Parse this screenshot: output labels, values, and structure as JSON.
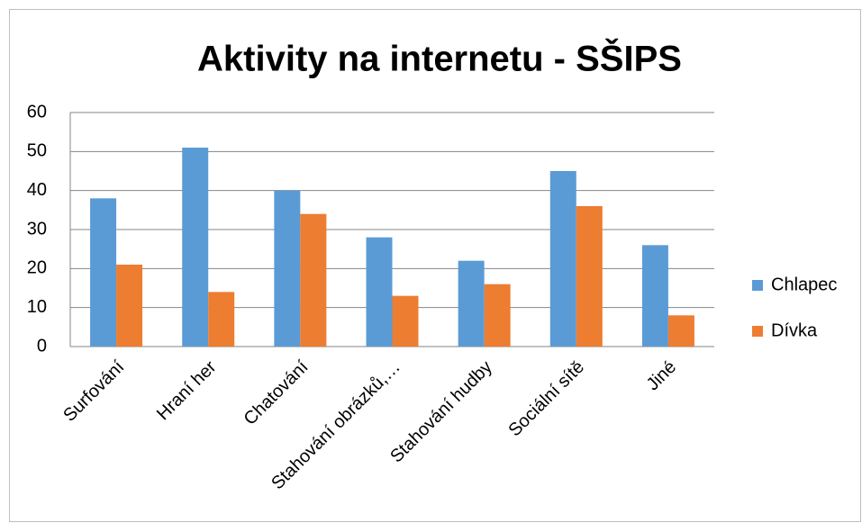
{
  "chart_data": {
    "type": "bar",
    "title": "Aktivity na internetu - SŠIPS",
    "categories": [
      "Surfování",
      "Hraní her",
      "Chatování",
      "Stahování obrázků,…",
      "Stahování hudby",
      "Sociální sítě",
      "Jiné"
    ],
    "series": [
      {
        "name": "Chlapec",
        "color": "#5b9bd5",
        "values": [
          38,
          51,
          40,
          28,
          22,
          45,
          26
        ]
      },
      {
        "name": "Dívka",
        "color": "#ed7d31",
        "values": [
          21,
          14,
          34,
          13,
          16,
          36,
          8
        ]
      }
    ],
    "ylim": [
      0,
      60
    ],
    "yticks": [
      0,
      10,
      20,
      30,
      40,
      50,
      60
    ],
    "grid": true,
    "legend": "right"
  }
}
